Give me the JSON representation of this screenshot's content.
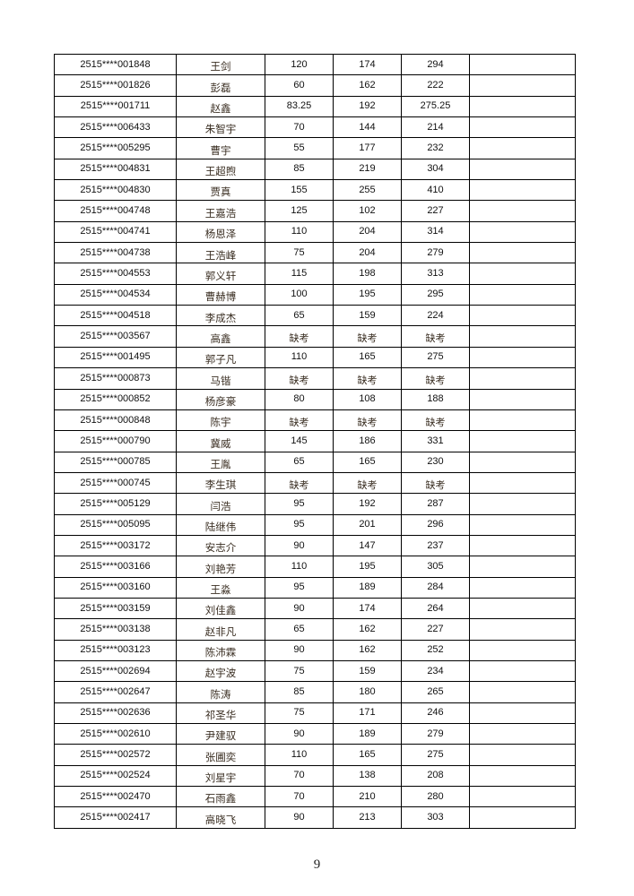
{
  "rows": [
    [
      "2515****001848",
      "王剑",
      "120",
      "174",
      "294",
      ""
    ],
    [
      "2515****001826",
      "彭磊",
      "60",
      "162",
      "222",
      ""
    ],
    [
      "2515****001711",
      "赵鑫",
      "83.25",
      "192",
      "275.25",
      ""
    ],
    [
      "2515****006433",
      "朱智宇",
      "70",
      "144",
      "214",
      ""
    ],
    [
      "2515****005295",
      "曹宇",
      "55",
      "177",
      "232",
      ""
    ],
    [
      "2515****004831",
      "王超煦",
      "85",
      "219",
      "304",
      ""
    ],
    [
      "2515****004830",
      "贾真",
      "155",
      "255",
      "410",
      ""
    ],
    [
      "2515****004748",
      "王嘉浩",
      "125",
      "102",
      "227",
      ""
    ],
    [
      "2515****004741",
      "杨恩泽",
      "110",
      "204",
      "314",
      ""
    ],
    [
      "2515****004738",
      "王浩峰",
      "75",
      "204",
      "279",
      ""
    ],
    [
      "2515****004553",
      "郭义轩",
      "115",
      "198",
      "313",
      ""
    ],
    [
      "2515****004534",
      "曹赫博",
      "100",
      "195",
      "295",
      ""
    ],
    [
      "2515****004518",
      "李成杰",
      "65",
      "159",
      "224",
      ""
    ],
    [
      "2515****003567",
      "高鑫",
      "缺考",
      "缺考",
      "缺考",
      ""
    ],
    [
      "2515****001495",
      "郭子凡",
      "110",
      "165",
      "275",
      ""
    ],
    [
      "2515****000873",
      "马锴",
      "缺考",
      "缺考",
      "缺考",
      ""
    ],
    [
      "2515****000852",
      "杨彦豪",
      "80",
      "108",
      "188",
      ""
    ],
    [
      "2515****000848",
      "陈宇",
      "缺考",
      "缺考",
      "缺考",
      ""
    ],
    [
      "2515****000790",
      "冀威",
      "145",
      "186",
      "331",
      ""
    ],
    [
      "2515****000785",
      "王胤",
      "65",
      "165",
      "230",
      ""
    ],
    [
      "2515****000745",
      "李生琪",
      "缺考",
      "缺考",
      "缺考",
      ""
    ],
    [
      "2515****005129",
      "闫浩",
      "95",
      "192",
      "287",
      ""
    ],
    [
      "2515****005095",
      "陆继伟",
      "95",
      "201",
      "296",
      ""
    ],
    [
      "2515****003172",
      "安志介",
      "90",
      "147",
      "237",
      ""
    ],
    [
      "2515****003166",
      "刘艳芳",
      "110",
      "195",
      "305",
      ""
    ],
    [
      "2515****003160",
      "王淼",
      "95",
      "189",
      "284",
      ""
    ],
    [
      "2515****003159",
      "刘佳鑫",
      "90",
      "174",
      "264",
      ""
    ],
    [
      "2515****003138",
      "赵非凡",
      "65",
      "162",
      "227",
      ""
    ],
    [
      "2515****003123",
      "陈沛霖",
      "90",
      "162",
      "252",
      ""
    ],
    [
      "2515****002694",
      "赵宇波",
      "75",
      "159",
      "234",
      ""
    ],
    [
      "2515****002647",
      "陈涛",
      "85",
      "180",
      "265",
      ""
    ],
    [
      "2515****002636",
      "祁圣华",
      "75",
      "171",
      "246",
      ""
    ],
    [
      "2515****002610",
      "尹建驭",
      "90",
      "189",
      "279",
      ""
    ],
    [
      "2515****002572",
      "张圃奕",
      "110",
      "165",
      "275",
      ""
    ],
    [
      "2515****002524",
      "刘星宇",
      "70",
      "138",
      "208",
      ""
    ],
    [
      "2515****002470",
      "石雨鑫",
      "70",
      "210",
      "280",
      ""
    ],
    [
      "2515****002417",
      "高晓飞",
      "90",
      "213",
      "303",
      ""
    ]
  ],
  "page_number": "9"
}
